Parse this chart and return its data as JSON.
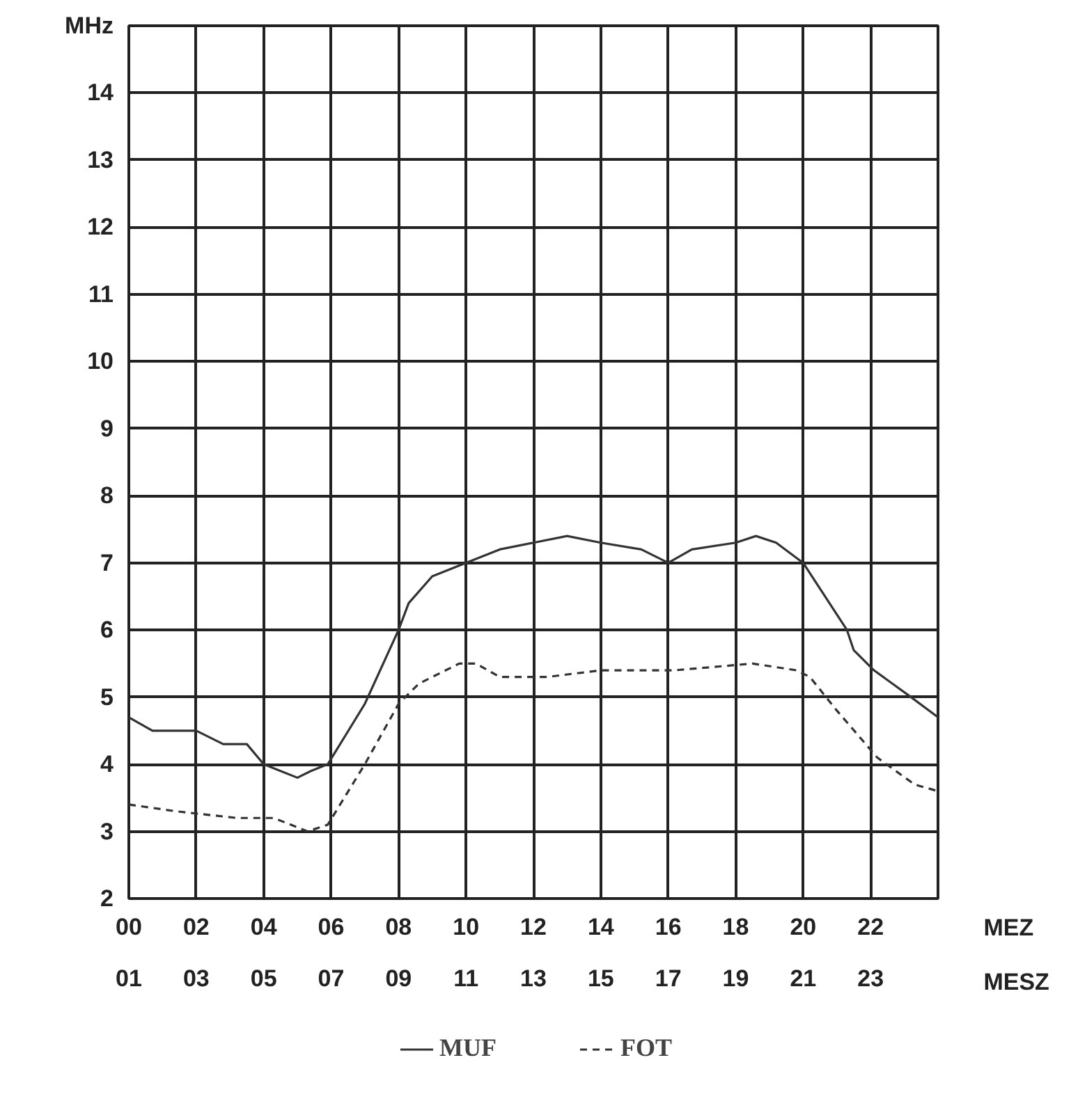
{
  "chart_data": {
    "type": "line",
    "xlabel": "MEZ",
    "x2label": "MESZ",
    "ylabel": "MHz",
    "xlim": [
      0,
      24
    ],
    "ylim": [
      2,
      15
    ],
    "xticks": [
      {
        "value": 0,
        "label": "00"
      },
      {
        "value": 2,
        "label": "02"
      },
      {
        "value": 4,
        "label": "04"
      },
      {
        "value": 6,
        "label": "06"
      },
      {
        "value": 8,
        "label": "08"
      },
      {
        "value": 10,
        "label": "10"
      },
      12,
      14,
      16,
      18,
      20,
      22,
      {
        "value": 24,
        "label": null
      }
    ],
    "x2lim": [
      1,
      25
    ],
    "x2ticks": [
      {
        "value": 1,
        "label": "01"
      },
      {
        "value": 3,
        "label": "03"
      },
      {
        "value": 5,
        "label": "05"
      },
      {
        "value": 7,
        "label": "07"
      },
      {
        "value": 9,
        "label": "09"
      },
      11,
      13,
      15,
      17,
      19,
      21,
      23
    ],
    "yticks": [
      2,
      3,
      4,
      5,
      6,
      7,
      8,
      9,
      10,
      11,
      12,
      13,
      14,
      {
        "value": 15,
        "label": null
      }
    ],
    "grid": true,
    "legend": "bottom",
    "marker": "none",
    "series": [
      {
        "name": "MUF",
        "color": "#333333",
        "line_style": "solid",
        "x": [
          0,
          0.7,
          2,
          2.8,
          3.5,
          4,
          4.5,
          5,
          5.4,
          5.9,
          7,
          8,
          8.3,
          9,
          10,
          11,
          12,
          13,
          14,
          15.2,
          16,
          16.7,
          18,
          18.6,
          19.2,
          20,
          21.3,
          21.5,
          22.1,
          23.2,
          24
        ],
        "values": [
          4.7,
          4.5,
          4.5,
          4.3,
          4.3,
          4.0,
          3.9,
          3.8,
          3.9,
          4.0,
          4.9,
          6.0,
          6.4,
          6.8,
          7.0,
          7.2,
          7.3,
          7.4,
          7.3,
          7.2,
          7.0,
          7.2,
          7.3,
          7.4,
          7.3,
          7.0,
          6.0,
          5.7,
          5.4,
          5.0,
          4.7
        ]
      },
      {
        "name": "FOT",
        "color": "#333333",
        "line_style": "dashed",
        "x": [
          0,
          1.4,
          3.2,
          4.3,
          5.3,
          5.9,
          7,
          8,
          8.6,
          9.8,
          10.3,
          11,
          12.4,
          14,
          16.2,
          18.5,
          19.8,
          20.2,
          21,
          22.2,
          23.3,
          24
        ],
        "values": [
          3.4,
          3.3,
          3.2,
          3.2,
          3.0,
          3.1,
          4.0,
          4.9,
          5.2,
          5.5,
          5.5,
          5.3,
          5.3,
          5.4,
          5.4,
          5.5,
          5.4,
          5.3,
          4.8,
          4.1,
          3.7,
          3.6
        ]
      }
    ]
  }
}
